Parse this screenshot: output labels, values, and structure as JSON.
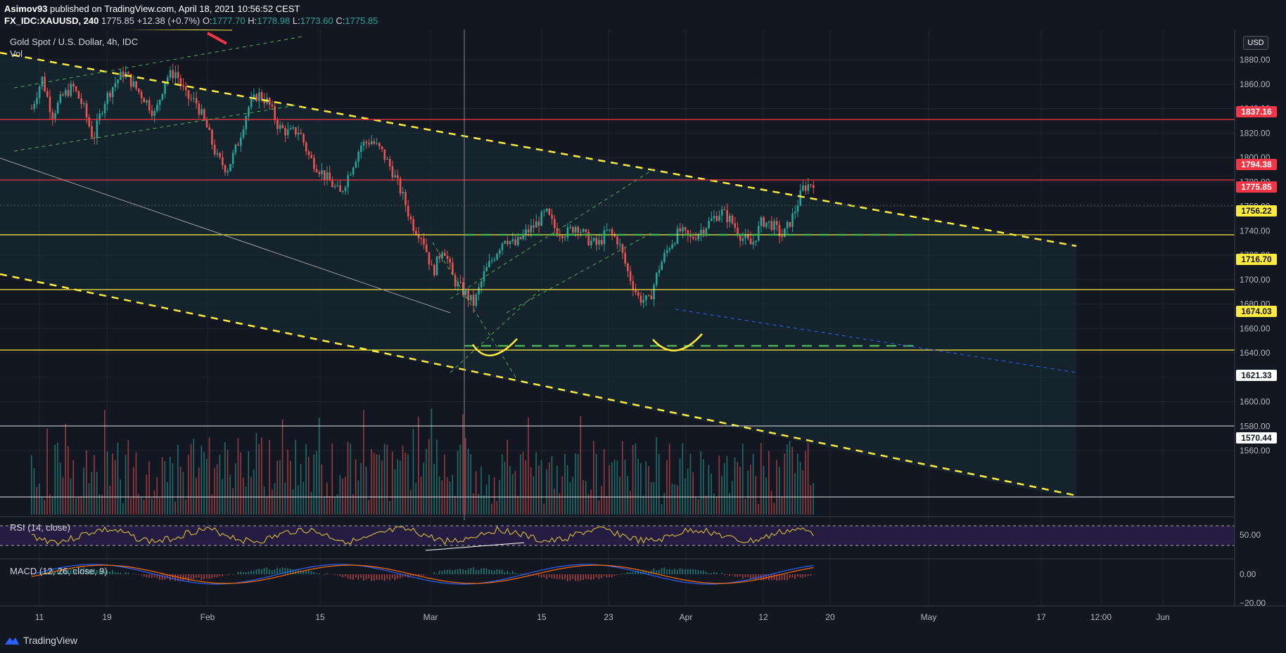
{
  "header": {
    "author": "Asimov93",
    "published": "published on TradingView.com, April 18, 2021 10:56:52 CEST",
    "symbol": "FX_IDC:XAUUSD, 240",
    "last": "1775.85",
    "change": "+12.38 (+0.7%)",
    "o_label": "O:",
    "o": "1777.70",
    "h_label": "H:",
    "h": "1778.98",
    "l_label": "L:",
    "l": "1773.60",
    "c_label": "C:",
    "c": "1775.85"
  },
  "legend": {
    "title": "Gold Spot / U.S. Dollar, 4h, IDC",
    "vol": "Vol",
    "rsi": "RSI (14, close)",
    "macd": "MACD (12, 26, close, 9)"
  },
  "currency_button": "USD",
  "price_axis": [
    "1880.00",
    "1860.00",
    "1840.00",
    "1820.00",
    "1800.00",
    "1780.00",
    "1760.00",
    "1740.00",
    "1720.00",
    "1700.00",
    "1680.00",
    "1660.00",
    "1640.00",
    "1620.00",
    "1600.00",
    "1580.00",
    "1560.00"
  ],
  "rsi_axis": [
    "50.00"
  ],
  "macd_axis": [
    "0.00",
    "−20.00"
  ],
  "time_axis": [
    "11",
    "19",
    "Feb",
    "15",
    "Mar",
    "15",
    "23",
    "Apr",
    "12",
    "20",
    "May",
    "17",
    "12:00",
    "Jun"
  ],
  "price_tags": [
    {
      "value": "1837.16",
      "price": 1837.16,
      "bg": "#f23645",
      "fg": "#ffffff"
    },
    {
      "value": "1794.38",
      "price": 1794.38,
      "bg": "#f23645",
      "fg": "#ffffff"
    },
    {
      "value": "1775.85",
      "price": 1775.85,
      "bg": "#f23645",
      "fg": "#ffffff"
    },
    {
      "value": "1756.22",
      "price": 1756.22,
      "bg": "#ffeb3b",
      "fg": "#131722"
    },
    {
      "value": "1716.70",
      "price": 1716.7,
      "bg": "#ffeb3b",
      "fg": "#131722"
    },
    {
      "value": "1674.03",
      "price": 1674.03,
      "bg": "#ffeb3b",
      "fg": "#131722"
    },
    {
      "value": "1621.33",
      "price": 1621.33,
      "bg": "#ffffff",
      "fg": "#131722"
    },
    {
      "value": "1570.44",
      "price": 1570.44,
      "bg": "#ffffff",
      "fg": "#131722"
    }
  ],
  "colors": {
    "up": "#26a69a",
    "down": "#ef5350",
    "yellow": "#ffeb3b",
    "red_line": "#f23645",
    "green_dash": "#4caf50",
    "rsi": "#c9b037",
    "macd": "#2962ff",
    "signal": "#ff6d00"
  },
  "footer": {
    "brand": "TradingView"
  },
  "chart_data": {
    "type": "candlestick",
    "title": "Gold Spot / U.S. Dollar, 4h, IDC",
    "ylim": [
      1555,
      1893
    ],
    "close_path": [
      1840,
      1865,
      1835,
      1850,
      1858,
      1842,
      1815,
      1845,
      1860,
      1870,
      1858,
      1848,
      1835,
      1865,
      1870,
      1850,
      1845,
      1825,
      1800,
      1790,
      1810,
      1840,
      1852,
      1845,
      1825,
      1820,
      1822,
      1800,
      1790,
      1780,
      1770,
      1790,
      1810,
      1814,
      1805,
      1790,
      1770,
      1745,
      1735,
      1705,
      1728,
      1700,
      1690,
      1680,
      1705,
      1720,
      1735,
      1728,
      1738,
      1745,
      1755,
      1740,
      1738,
      1745,
      1733,
      1728,
      1740,
      1732,
      1705,
      1685,
      1682,
      1710,
      1728,
      1740,
      1733,
      1740,
      1748,
      1756,
      1748,
      1735,
      1728,
      1748,
      1745,
      1735,
      1752,
      1775,
      1780
    ]
  }
}
